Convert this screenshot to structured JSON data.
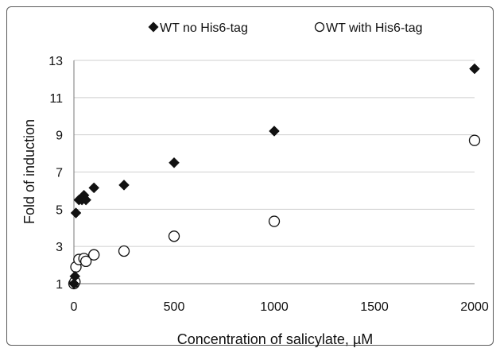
{
  "colors": {
    "series_filled": "#111111",
    "series_open_stroke": "#111111",
    "series_open_fill": "#ffffff",
    "gridline": "#cfcfcf",
    "axis": "#7a7a7a",
    "frame_border": "#5a5a5a"
  },
  "chart_data": {
    "type": "scatter",
    "title": "",
    "xlabel": "Concentration of salicylate, µM",
    "ylabel": "Fold of induction",
    "xlim": [
      0,
      2000
    ],
    "ylim": [
      1,
      13
    ],
    "x_ticks": [
      "0",
      "500",
      "1000",
      "1500",
      "2000"
    ],
    "y_ticks": [
      "1",
      "3",
      "5",
      "7",
      "9",
      "11",
      "13"
    ],
    "grid": "horizontal",
    "legend_position": "top",
    "series": [
      {
        "name": "WT no His6-tag",
        "marker": "filled-diamond",
        "x": [
          0,
          5,
          10,
          25,
          40,
          50,
          60,
          100,
          250,
          500,
          1000,
          2000
        ],
        "y": [
          1.0,
          1.4,
          4.8,
          5.5,
          5.5,
          5.75,
          5.5,
          6.15,
          6.3,
          7.5,
          9.2,
          12.55
        ]
      },
      {
        "name": "WT with His6-tag",
        "marker": "open-circle",
        "x": [
          0,
          5,
          10,
          25,
          50,
          60,
          100,
          250,
          500,
          1000,
          2000
        ],
        "y": [
          1.0,
          1.1,
          1.9,
          2.3,
          2.35,
          2.2,
          2.55,
          2.75,
          3.55,
          4.35,
          8.7
        ]
      }
    ]
  }
}
